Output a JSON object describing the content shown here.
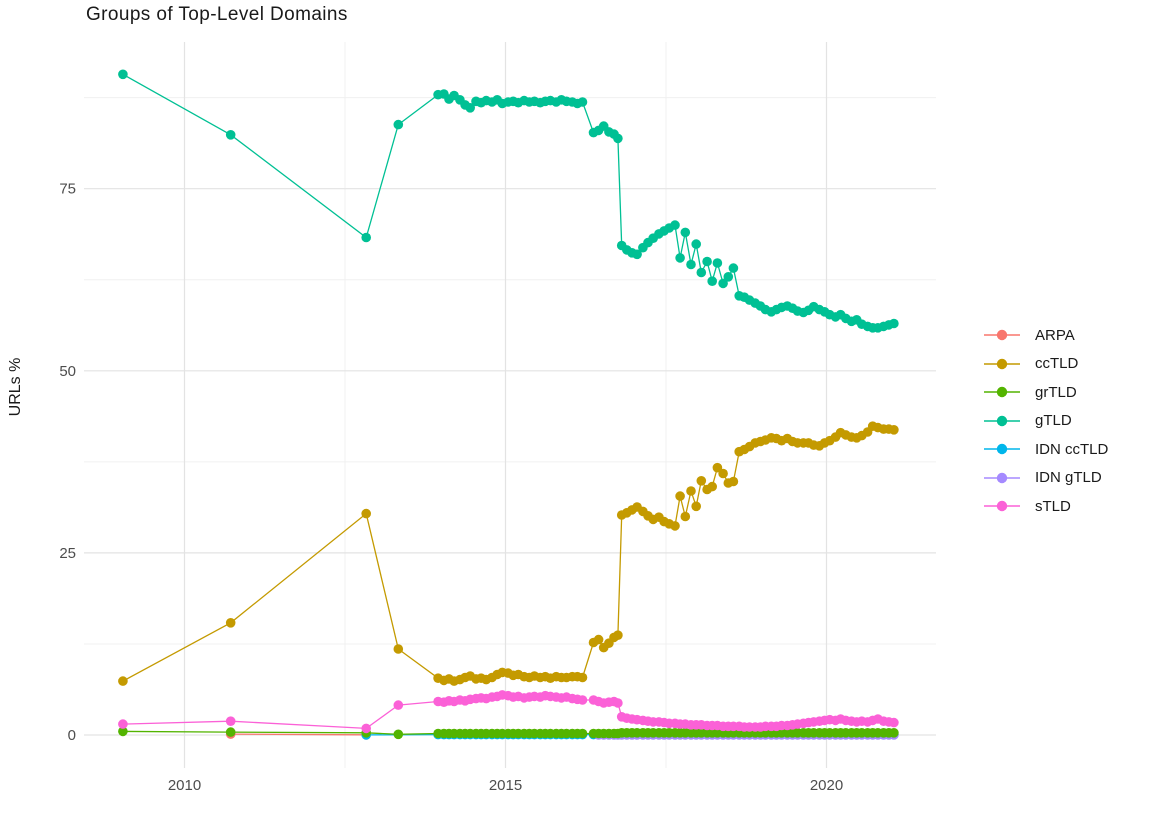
{
  "chart_data": {
    "type": "line",
    "title": "Groups of Top-Level Domains",
    "ylabel": "URLs %",
    "xlabel": "",
    "legend_position": "right",
    "grid": true,
    "xlim": [
      2008.44,
      2021.7
    ],
    "ylim": [
      -4.5,
      95.2
    ],
    "x_ticks": [
      {
        "v": 2010,
        "label": "2010"
      },
      {
        "v": 2015,
        "label": "2015"
      },
      {
        "v": 2020,
        "label": "2020"
      }
    ],
    "y_ticks": [
      {
        "v": 0,
        "label": "0"
      },
      {
        "v": 25,
        "label": "25"
      },
      {
        "v": 50,
        "label": "50"
      },
      {
        "v": 75,
        "label": "75"
      }
    ],
    "x_minor": [
      2012.5,
      2017.5
    ],
    "y_minor": [
      12.5,
      37.5,
      62.5,
      87.5
    ],
    "x_shared": {
      "sparse": [
        2009.04,
        2010.72,
        2012.83,
        2013.33
      ],
      "d1": [
        2013.95,
        2014.04,
        2014.12,
        2014.2,
        2014.29,
        2014.37,
        2014.45,
        2014.54,
        2014.62,
        2014.7,
        2014.79,
        2014.87,
        2014.95,
        2015.04,
        2015.12,
        2015.2,
        2015.29,
        2015.37,
        2015.45,
        2015.54,
        2015.62,
        2015.7,
        2015.79,
        2015.87,
        2015.95,
        2016.04,
        2016.12,
        2016.2
      ],
      "tr": [
        2016.37,
        2016.45,
        2016.53,
        2016.61,
        2016.69,
        2016.75
      ],
      "d2": [
        2016.81,
        2016.89,
        2016.97,
        2017.05,
        2017.14,
        2017.22,
        2017.3,
        2017.39,
        2017.47,
        2017.55,
        2017.64,
        2017.72,
        2017.8,
        2017.89,
        2017.97,
        2018.05,
        2018.14,
        2018.22,
        2018.3,
        2018.39,
        2018.47,
        2018.55,
        2018.64,
        2018.72,
        2018.8,
        2018.89,
        2018.97,
        2019.05,
        2019.14,
        2019.22,
        2019.3,
        2019.39,
        2019.47,
        2019.55,
        2019.64,
        2019.72,
        2019.8,
        2019.89,
        2019.97,
        2020.05,
        2020.14,
        2020.22,
        2020.3,
        2020.39,
        2020.47,
        2020.55,
        2020.64,
        2020.72,
        2020.8,
        2020.89,
        2020.97,
        2021.05
      ]
    },
    "series": [
      {
        "name": "ARPA",
        "color": "#F8766D",
        "z": 0,
        "segments": {
          "sparse": [
            null,
            0.12,
            0.03,
            null
          ]
        }
      },
      {
        "name": "ccTLD",
        "color": "#C49A00",
        "z": 4,
        "segments": {
          "sparse": [
            7.4,
            15.4,
            30.4,
            11.8
          ],
          "d1": [
            7.8,
            7.5,
            7.7,
            7.4,
            7.6,
            7.9,
            8.1,
            7.7,
            7.8,
            7.6,
            7.9,
            8.3,
            8.6,
            8.5,
            8.2,
            8.3,
            8.0,
            7.9,
            8.1,
            7.9,
            8.0,
            7.8,
            8.0,
            7.9,
            7.9,
            8.0,
            8.0,
            7.9
          ],
          "tr": [
            12.7,
            13.1,
            12.0,
            12.6,
            13.4,
            13.7
          ],
          "d2": [
            30.2,
            30.5,
            30.9,
            31.3,
            30.7,
            30.1,
            29.6,
            29.9,
            29.3,
            29.0,
            28.7,
            32.8,
            30.0,
            33.5,
            31.4,
            34.9,
            33.7,
            34.1,
            36.7,
            35.9,
            34.6,
            34.8,
            38.9,
            39.2,
            39.6,
            40.1,
            40.3,
            40.5,
            40.8,
            40.7,
            40.4,
            40.7,
            40.3,
            40.1,
            40.1,
            40.1,
            39.8,
            39.7,
            40.1,
            40.4,
            40.9,
            41.5,
            41.2,
            40.9,
            40.8,
            41.1,
            41.6,
            42.4,
            42.2,
            42.0,
            42.0,
            41.9
          ]
        }
      },
      {
        "name": "grTLD",
        "color": "#53B400",
        "z": 3,
        "segments": {
          "sparse": [
            0.5,
            0.4,
            0.3,
            0.1
          ],
          "d1": [
            0.2,
            0.2,
            0.2,
            0.2,
            0.2,
            0.2,
            0.2,
            0.2,
            0.2,
            0.2,
            0.2,
            0.2,
            0.2,
            0.2,
            0.2,
            0.2,
            0.2,
            0.2,
            0.2,
            0.2,
            0.2,
            0.2,
            0.2,
            0.2,
            0.2,
            0.2,
            0.2,
            0.2
          ],
          "tr": [
            0.2,
            0.2,
            0.2,
            0.2,
            0.2,
            0.2
          ],
          "d2": [
            0.3,
            0.3,
            0.3,
            0.3,
            0.3,
            0.3,
            0.3,
            0.3,
            0.3,
            0.3,
            0.3,
            0.3,
            0.3,
            0.3,
            0.3,
            0.3,
            0.3,
            0.3,
            0.3,
            0.3,
            0.3,
            0.3,
            0.3,
            0.3,
            0.3,
            0.3,
            0.3,
            0.3,
            0.3,
            0.3,
            0.3,
            0.3,
            0.3,
            0.3,
            0.3,
            0.3,
            0.3,
            0.3,
            0.3,
            0.3,
            0.3,
            0.3,
            0.3,
            0.3,
            0.3,
            0.3,
            0.3,
            0.3,
            0.3,
            0.3,
            0.3,
            0.3
          ]
        }
      },
      {
        "name": "gTLD",
        "color": "#00C094",
        "z": 5,
        "segments": {
          "sparse": [
            90.7,
            82.4,
            68.3,
            83.8
          ],
          "d1": [
            87.9,
            88.0,
            87.3,
            87.8,
            87.2,
            86.5,
            86.1,
            87.0,
            86.8,
            87.1,
            86.9,
            87.2,
            86.7,
            86.9,
            87.0,
            86.8,
            87.1,
            86.9,
            87.0,
            86.8,
            87.0,
            87.1,
            86.9,
            87.2,
            87.0,
            86.9,
            86.7,
            86.9
          ],
          "tr": [
            82.7,
            83.0,
            83.6,
            82.8,
            82.5,
            81.9
          ],
          "d2": [
            67.2,
            66.6,
            66.2,
            66.0,
            66.9,
            67.6,
            68.2,
            68.8,
            69.2,
            69.6,
            70.0,
            65.5,
            69.0,
            64.6,
            67.4,
            63.5,
            65.0,
            62.3,
            64.8,
            62.0,
            62.9,
            64.1,
            60.3,
            60.1,
            59.7,
            59.3,
            58.9,
            58.4,
            58.1,
            58.4,
            58.7,
            58.9,
            58.6,
            58.2,
            58.0,
            58.3,
            58.8,
            58.4,
            58.1,
            57.7,
            57.4,
            57.7,
            57.2,
            56.8,
            57.0,
            56.4,
            56.1,
            55.9,
            55.9,
            56.1,
            56.3,
            56.5
          ]
        }
      },
      {
        "name": "IDN ccTLD",
        "color": "#00B6EB",
        "z": 1,
        "segments": {
          "sparse": [
            null,
            null,
            0.02,
            null
          ],
          "d1": [
            0.05,
            0.05,
            0.05,
            0.05,
            0.05,
            0.05,
            0.05,
            0.05,
            0.05,
            0.05,
            0.05,
            0.05,
            0.05,
            0.05,
            0.05,
            0.05,
            0.05,
            0.05,
            0.05,
            0.05,
            0.05,
            0.05,
            0.05,
            0.05,
            0.05,
            0.05,
            0.05,
            0.05
          ],
          "tr": [
            0.05,
            0.05,
            0.05,
            0.05,
            0.05,
            0.05
          ],
          "d2": [
            0.05,
            0.05,
            0.05,
            0.05,
            0.05,
            0.05,
            0.05,
            0.05,
            0.05,
            0.05,
            0.05,
            0.05,
            0.05,
            0.05,
            0.05,
            0.05,
            0.05,
            0.05,
            0.05,
            0.05,
            0.05,
            0.05,
            0.05,
            0.05,
            0.05,
            0.05,
            0.05,
            0.05,
            0.05,
            0.05,
            0.05,
            0.05,
            0.05,
            0.05,
            0.05,
            0.05,
            0.05,
            0.05,
            0.05,
            0.05,
            0.05,
            0.05,
            0.05,
            0.05,
            0.05,
            0.05,
            0.05,
            0.05,
            0.05,
            0.05,
            0.05,
            0.05
          ]
        }
      },
      {
        "name": "IDN gTLD",
        "color": "#A58AFF",
        "z": 2,
        "segments": {
          "tr": [
            null,
            0.0,
            0.0,
            0.0,
            0.0,
            0.0
          ],
          "d2": [
            0.0,
            0.0,
            0.0,
            0.0,
            0.0,
            0.0,
            0.0,
            0.0,
            0.0,
            0.0,
            0.0,
            0.0,
            0.0,
            0.0,
            0.0,
            0.0,
            0.0,
            0.0,
            0.0,
            0.0,
            0.0,
            0.0,
            0.0,
            0.0,
            0.0,
            0.0,
            0.0,
            0.0,
            0.0,
            0.0,
            0.0,
            0.0,
            0.0,
            0.0,
            0.0,
            0.0,
            0.0,
            0.0,
            0.0,
            0.0,
            0.0,
            0.0,
            0.0,
            0.0,
            0.0,
            0.0,
            0.0,
            0.0,
            0.0,
            0.0,
            0.0,
            0.0
          ]
        }
      },
      {
        "name": "sTLD",
        "color": "#FB61D7",
        "z": 6,
        "segments": {
          "sparse": [
            1.5,
            1.9,
            0.9,
            4.1
          ],
          "d1": [
            4.6,
            4.5,
            4.7,
            4.6,
            4.8,
            4.7,
            4.9,
            5.0,
            5.1,
            5.0,
            5.2,
            5.3,
            5.5,
            5.4,
            5.2,
            5.3,
            5.1,
            5.2,
            5.3,
            5.2,
            5.4,
            5.3,
            5.2,
            5.1,
            5.2,
            5.0,
            4.9,
            4.8
          ],
          "tr": [
            4.8,
            4.6,
            4.4,
            4.5,
            4.6,
            4.4
          ],
          "d2": [
            2.5,
            2.3,
            2.2,
            2.1,
            2.0,
            1.9,
            1.8,
            1.8,
            1.7,
            1.6,
            1.6,
            1.5,
            1.5,
            1.4,
            1.4,
            1.4,
            1.3,
            1.3,
            1.3,
            1.2,
            1.2,
            1.2,
            1.2,
            1.1,
            1.1,
            1.1,
            1.1,
            1.2,
            1.2,
            1.2,
            1.3,
            1.3,
            1.4,
            1.5,
            1.6,
            1.7,
            1.8,
            1.9,
            2.0,
            2.1,
            2.0,
            2.2,
            2.0,
            1.9,
            1.8,
            1.9,
            1.8,
            2.0,
            2.2,
            1.9,
            1.8,
            1.7
          ]
        }
      }
    ]
  }
}
